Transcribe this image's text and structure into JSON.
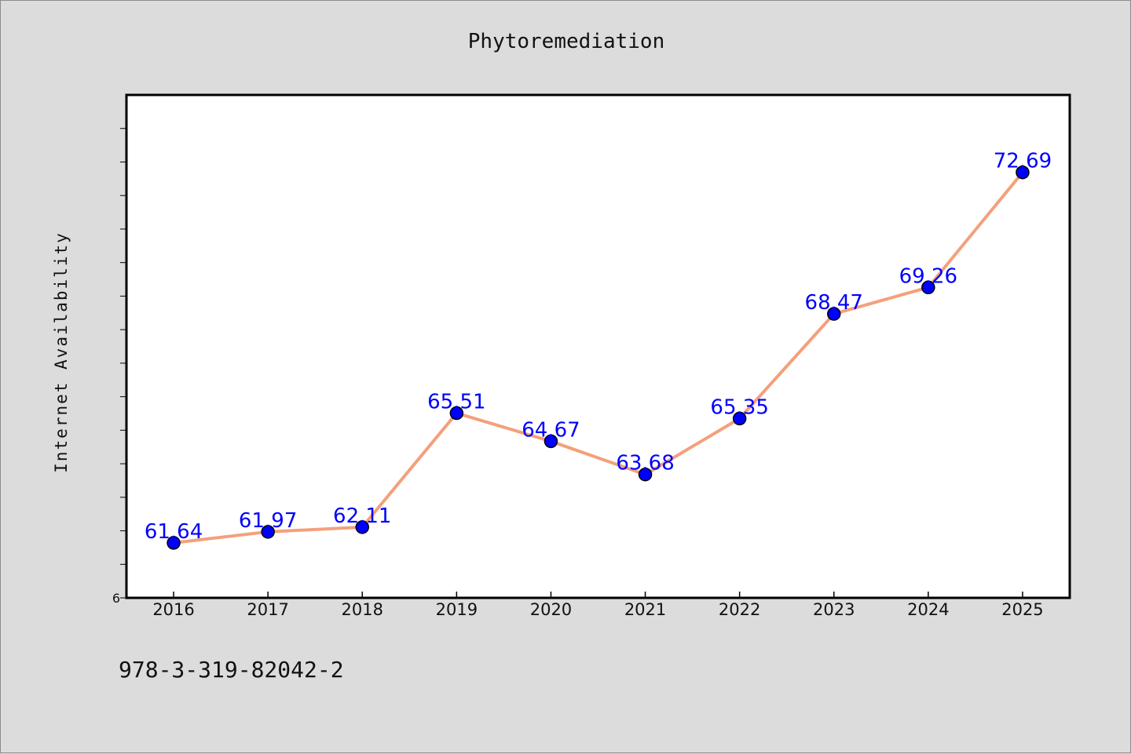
{
  "footnote": "978-3-319-82042-2",
  "colors": {
    "background": "#dcdcdc",
    "plot_background": "#ffffff",
    "line": "#f4a07c",
    "marker": "#0000ff",
    "data_label": "#0000ff"
  },
  "chart_data": {
    "type": "line",
    "title": "Phytoremediation",
    "xlabel": "",
    "ylabel": "Internet Availability",
    "categories": [
      "2016",
      "2017",
      "2018",
      "2019",
      "2020",
      "2021",
      "2022",
      "2023",
      "2024",
      "2025"
    ],
    "series": [
      {
        "values": [
          61.64,
          61.97,
          62.11,
          65.51,
          64.67,
          63.68,
          65.35,
          68.47,
          69.26,
          72.69
        ],
        "data_labels": [
          "61.64",
          "61.97",
          "62.11",
          "65.51",
          "64.67",
          "63.68",
          "65.35",
          "68.47",
          "69.26",
          "72.69"
        ]
      }
    ],
    "y_tick_labels": [
      "6"
    ],
    "ylim": [
      60,
      75
    ],
    "y_minor_tick_step": 1,
    "grid": false,
    "legend": "none"
  }
}
